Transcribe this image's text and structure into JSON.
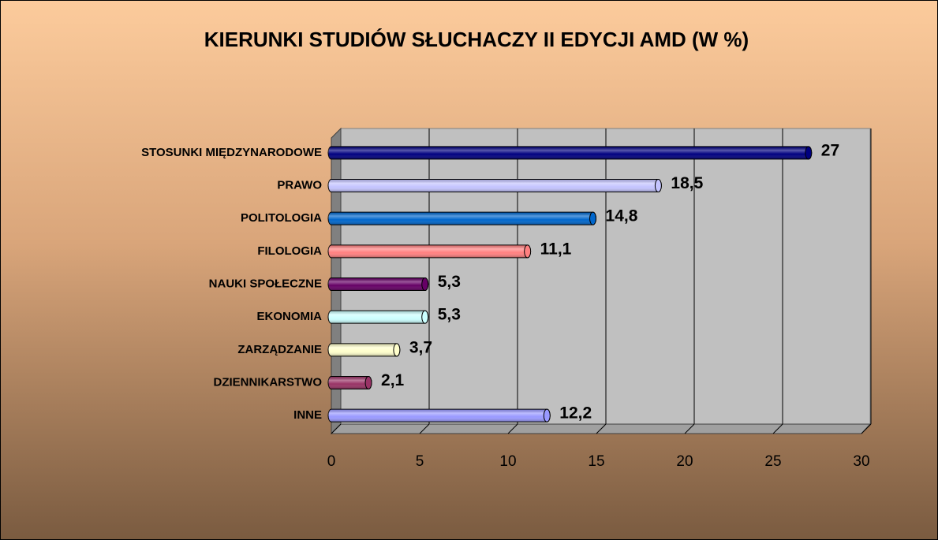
{
  "chart_data": {
    "type": "bar",
    "orientation": "horizontal",
    "title": "KIERUNKI STUDIÓW SŁUCHACZY II EDYCJI AMD (W %)",
    "categories": [
      "STOSUNKI MIĘDZYNARODOWE",
      "PRAWO",
      "POLITOLOGIA",
      "FILOLOGIA",
      "NAUKI SPOŁECZNE",
      "EKONOMIA",
      "ZARZĄDZANIE",
      "DZIENNIKARSTWO",
      "INNE"
    ],
    "values": [
      27,
      18.5,
      14.8,
      11.1,
      5.3,
      5.3,
      3.7,
      2.1,
      12.2
    ],
    "value_labels": [
      "27",
      "18,5",
      "14,8",
      "11,1",
      "5,3",
      "5,3",
      "3,7",
      "2,1",
      "12,2"
    ],
    "colors": [
      "#000080",
      "#c4c4ff",
      "#0066cc",
      "#ff8080",
      "#660066",
      "#ccffff",
      "#ffffcc",
      "#993366",
      "#9999ff"
    ],
    "xlim": [
      0,
      30
    ],
    "xticks": [
      0,
      5,
      10,
      15,
      20,
      25,
      30
    ],
    "grid": true
  }
}
